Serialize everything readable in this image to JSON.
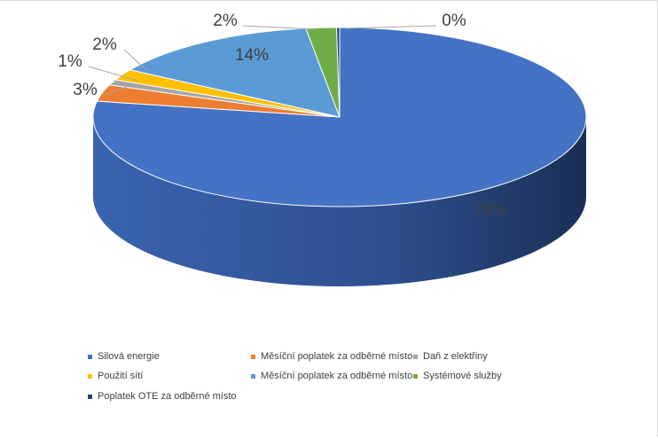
{
  "chart_data": {
    "type": "pie",
    "style": "3d",
    "title": "",
    "categories": [
      "Silová energie",
      "Měsíční poplatek za odběrné místo",
      "Daň z elektřiny",
      "Použití sítí",
      "Měsíční poplatek za odběrné místo",
      "Systémové služby",
      "Poplatek OTE za odběrné místo"
    ],
    "values": [
      78,
      3,
      1,
      2,
      14,
      2,
      0
    ],
    "labels": [
      "78%",
      "3%",
      "1%",
      "2%",
      "14%",
      "2%",
      "0%"
    ],
    "colors": [
      "#4472C4",
      "#ED7D31",
      "#A5A5A5",
      "#FFC000",
      "#5B9BD5",
      "#70AD47",
      "#264478"
    ],
    "legend_position": "bottom"
  }
}
